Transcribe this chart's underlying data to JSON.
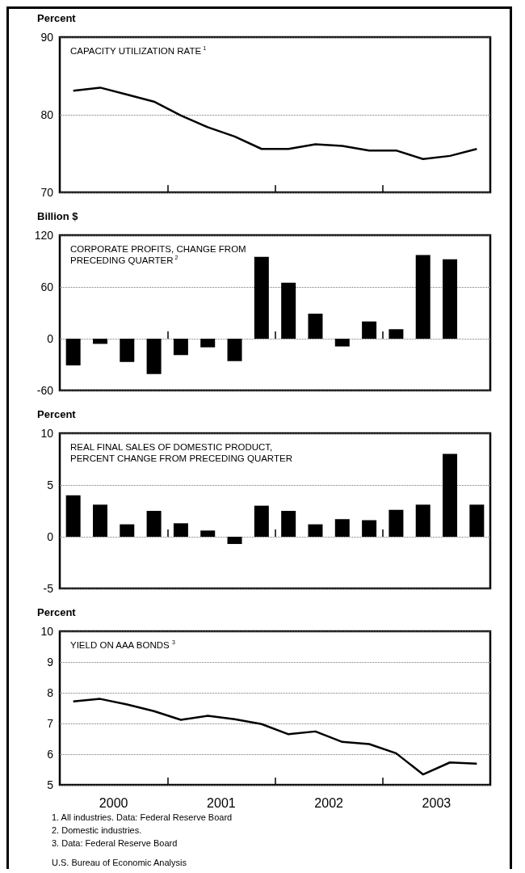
{
  "chart_data": [
    {
      "type": "line",
      "title": "CAPACITY UTILIZATION RATE$^{1}$",
      "ylabel": "Percent",
      "x": [
        2000.125,
        2000.375,
        2000.625,
        2000.875,
        2001.125,
        2001.375,
        2001.625,
        2001.875,
        2002.125,
        2002.375,
        2002.625,
        2002.875,
        2003.125,
        2003.375,
        2003.625,
        2003.875
      ],
      "series": [
        {
          "color": "#000000",
          "values": [
            83.1,
            83.5,
            82.6,
            81.7,
            79.9,
            78.4,
            77.2,
            75.6,
            75.6,
            76.2,
            76.0,
            75.4,
            75.4,
            74.3,
            74.7,
            75.6
          ]
        }
      ],
      "xlim": [
        2000,
        2004
      ],
      "xticks": [
        {
          "value": 2001,
          "label": null
        },
        {
          "value": 2002,
          "label": null
        },
        {
          "value": 2003,
          "label": null
        }
      ],
      "ylim": [
        70,
        90
      ],
      "yticks": [
        70,
        80,
        90
      ],
      "grid": "y",
      "tick_labels": "y"
    },
    {
      "type": "bar",
      "title": "CORPORATE PROFITS, CHANGE FROM\nPRECEDING QUARTER$^{2}$",
      "ylabel": "Billion $",
      "series": [
        {
          "color": "#000000",
          "x": [
            2000.125,
            2000.375,
            2000.625,
            2000.875,
            2001.125,
            2001.375,
            2001.625,
            2001.875,
            2002.125,
            2002.375,
            2002.625,
            2002.875,
            2003.125,
            2003.375,
            2003.625
          ],
          "values": [
            -31,
            -6,
            -27,
            -41,
            -19,
            -10,
            -26,
            95,
            65,
            29,
            -9,
            20,
            11,
            97,
            92
          ]
        }
      ],
      "xlim": [
        2000,
        2004
      ],
      "xticks": [
        {
          "value": 2001,
          "label": null
        },
        {
          "value": 2002,
          "label": null
        },
        {
          "value": 2003,
          "label": null
        }
      ],
      "ylim": [
        -60,
        120
      ],
      "yticks": [
        -60,
        0,
        60,
        120
      ],
      "grid": "y",
      "tick_labels": "y"
    },
    {
      "type": "bar",
      "title": "REAL FINAL SALES OF DOMESTIC PRODUCT,\nPERCENT CHANGE FROM PRECEDING QUARTER",
      "ylabel": "Percent",
      "x": [
        2000.125,
        2000.375,
        2000.625,
        2000.875,
        2001.125,
        2001.375,
        2001.625,
        2001.875,
        2002.125,
        2002.375,
        2002.625,
        2002.875,
        2003.125,
        2003.375,
        2003.625,
        2003.875
      ],
      "series": [
        {
          "color": "#000000",
          "values": [
            4.0,
            3.1,
            1.2,
            2.5,
            1.3,
            0.6,
            -0.7,
            3.0,
            2.5,
            1.2,
            1.7,
            1.6,
            2.6,
            3.1,
            8.0,
            3.1
          ]
        }
      ],
      "xlim": [
        2000,
        2004
      ],
      "xticks": [
        {
          "value": 2001,
          "label": null
        },
        {
          "value": 2002,
          "label": null
        },
        {
          "value": 2003,
          "label": null
        }
      ],
      "ylim": [
        -5,
        10
      ],
      "yticks": [
        -5,
        0,
        5,
        10
      ],
      "grid": "y",
      "tick_labels": "y"
    },
    {
      "type": "line",
      "title": "YIELD ON AAA BONDS$^{3}$",
      "ylabel": "Percent",
      "x": [
        2000.125,
        2000.375,
        2000.625,
        2000.875,
        2001.125,
        2001.375,
        2001.625,
        2001.875,
        2002.125,
        2002.375,
        2002.625,
        2002.875,
        2003.125,
        2003.375,
        2003.625,
        2003.875
      ],
      "series": [
        {
          "color": "#000000",
          "values": [
            7.72,
            7.8,
            7.62,
            7.4,
            7.12,
            7.25,
            7.14,
            6.98,
            6.65,
            6.74,
            6.4,
            6.33,
            6.03,
            5.34,
            5.73,
            5.69
          ]
        }
      ],
      "xlim": [
        2000,
        2004
      ],
      "xticks": [
        {
          "value": 2000.5,
          "label": "2000"
        },
        {
          "value": 2001,
          "label": null
        },
        {
          "value": 2001.5,
          "label": "2001"
        },
        {
          "value": 2002,
          "label": null
        },
        {
          "value": 2002.5,
          "label": "2002"
        },
        {
          "value": 2003,
          "label": null
        },
        {
          "value": 2003.5,
          "label": "2003"
        }
      ],
      "ylim": [
        5,
        10
      ],
      "yticks": [
        5,
        6,
        7,
        8,
        9,
        10
      ],
      "grid": "y",
      "annotations": [
        "1. All industries. Data: Federal Reserve Board",
        "2. Domestic industries.",
        "3. Data: Federal Reserve Board",
        "U.S. Bureau of Economic Analysis"
      ]
    }
  ]
}
